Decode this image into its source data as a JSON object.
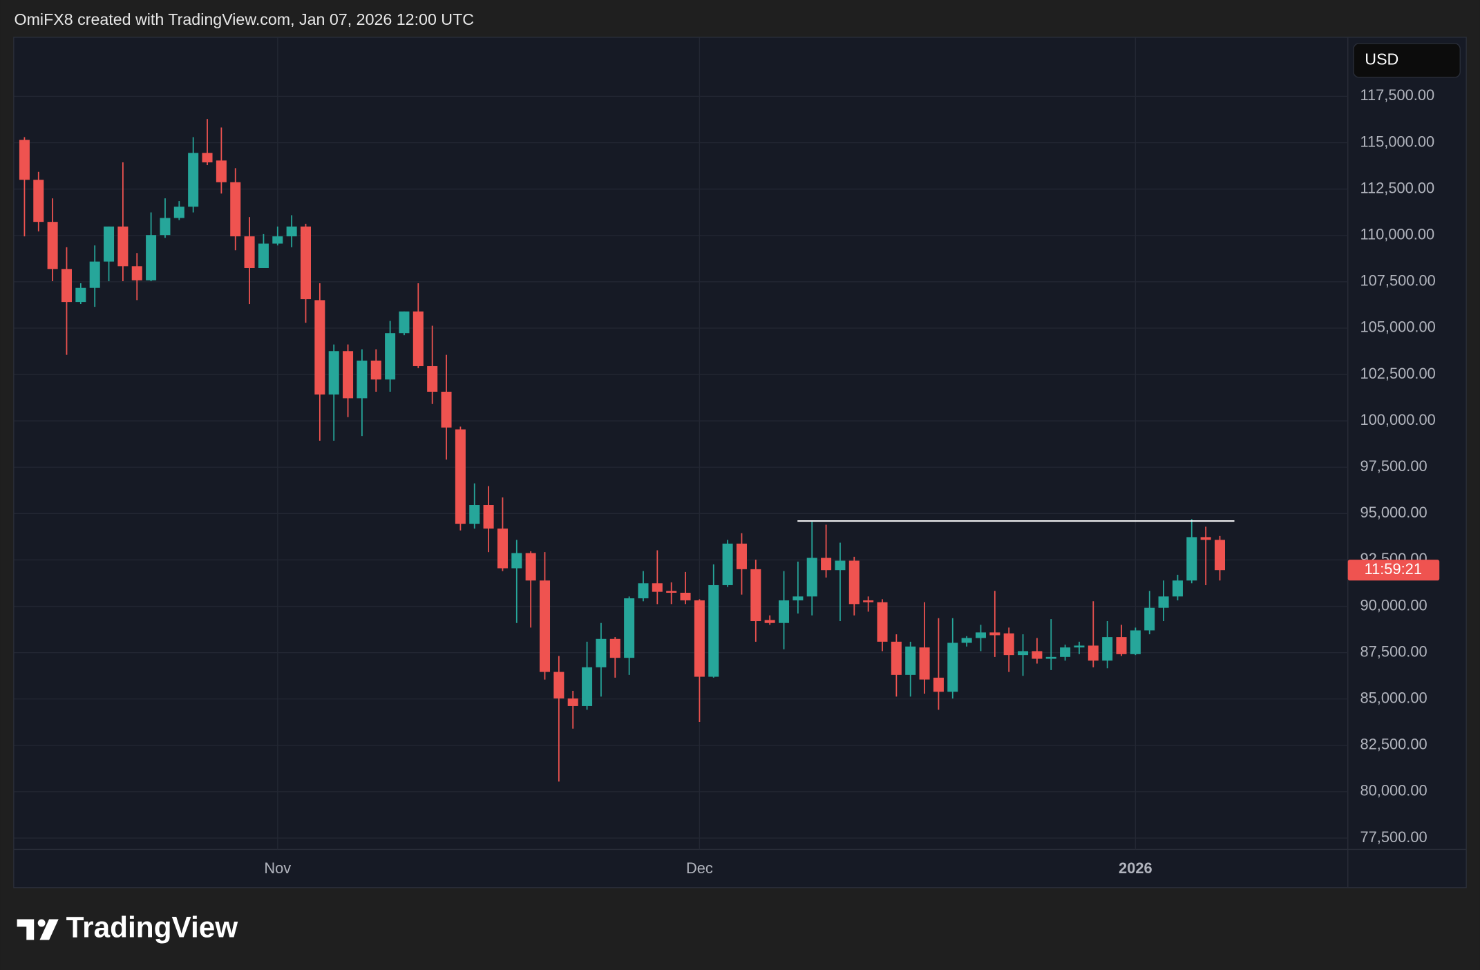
{
  "header": "OmiFX8 created with TradingView.com, Jan 07, 2026 12:00 UTC",
  "currency": "USD",
  "brand": "TradingView",
  "chart_data": {
    "type": "candlestick",
    "categories": [
      null,
      null,
      null,
      null,
      null,
      null,
      null,
      null,
      null,
      null,
      null,
      null,
      null,
      null,
      null,
      null,
      null,
      null,
      "Nov",
      null,
      null,
      null,
      null,
      null,
      null,
      null,
      null,
      null,
      null,
      null,
      null,
      null,
      null,
      null,
      null,
      null,
      null,
      null,
      null,
      null,
      null,
      null,
      null,
      null,
      null,
      null,
      null,
      null,
      "Dec",
      null,
      null,
      null,
      null,
      null,
      null,
      null,
      null,
      null,
      null,
      null,
      null,
      null,
      null,
      null,
      null,
      null,
      null,
      null,
      null,
      null,
      null,
      null,
      null,
      null,
      null,
      null,
      null,
      null,
      null,
      "2026",
      null,
      null,
      null,
      null,
      null,
      null
    ],
    "bold_categories": [
      "2026"
    ],
    "open": [
      115150,
      113000,
      110730,
      108190,
      106410,
      107170,
      108590,
      110480,
      108340,
      107580,
      110020,
      110940,
      111550,
      114450,
      114040,
      112870,
      109950,
      108240,
      109560,
      109950,
      110480,
      106510,
      101420,
      103760,
      101220,
      103250,
      102230,
      104730,
      105900,
      102950,
      101570,
      99540,
      94450,
      95460,
      94190,
      92050,
      92870,
      91390,
      86460,
      85030,
      84620,
      86710,
      88240,
      87220,
      90430,
      91240,
      90830,
      90730,
      90320,
      86200,
      91140,
      93380,
      92000,
      89260,
      89100,
      90320,
      90530,
      92610,
      91950,
      92460,
      90320,
      90220,
      88090,
      86300,
      87780,
      86150,
      85390,
      88030,
      88290,
      88590,
      88540,
      87370,
      87580,
      87170,
      87270,
      87780,
      87880,
      87070,
      88340,
      87420,
      88700,
      89920,
      90530,
      91390,
      93730,
      93580
    ],
    "high": [
      115300,
      113430,
      112000,
      109360,
      107420,
      109460,
      110480,
      113940,
      109050,
      111240,
      112000,
      111850,
      115300,
      116280,
      115820,
      113630,
      110990,
      110070,
      110480,
      111090,
      110630,
      107420,
      104120,
      104120,
      103860,
      103860,
      105390,
      105900,
      107420,
      105130,
      103560,
      99690,
      96630,
      96480,
      95870,
      93580,
      92970,
      92920,
      87320,
      85440,
      88090,
      89100,
      88340,
      90530,
      91900,
      93020,
      91290,
      91850,
      90380,
      92260,
      93580,
      93940,
      92510,
      89510,
      91900,
      92410,
      94550,
      94400,
      93430,
      92670,
      90530,
      90380,
      88490,
      88090,
      90220,
      89360,
      89360,
      88390,
      89000,
      90830,
      88850,
      88490,
      88290,
      89310,
      87930,
      88090,
      90270,
      89200,
      89000,
      88850,
      90830,
      91390,
      91700,
      94700,
      94290,
      93790
    ],
    "low": [
      109950,
      110220,
      107530,
      103560,
      106300,
      106150,
      107530,
      107530,
      106510,
      107530,
      109870,
      110830,
      111240,
      113790,
      112260,
      109200,
      106300,
      108240,
      109460,
      109360,
      105290,
      98930,
      98930,
      100200,
      99180,
      101570,
      101570,
      104620,
      102840,
      100910,
      97910,
      94090,
      94190,
      92920,
      91900,
      89100,
      88850,
      86050,
      80550,
      83400,
      84420,
      85130,
      86150,
      86300,
      90270,
      90120,
      90120,
      90120,
      83760,
      86150,
      91040,
      90630,
      88090,
      89000,
      87680,
      89610,
      89510,
      91550,
      89200,
      89510,
      89710,
      87580,
      85130,
      85130,
      85290,
      84420,
      85030,
      87830,
      87580,
      87270,
      86460,
      86250,
      86910,
      86560,
      87070,
      87420,
      86710,
      86660,
      87320,
      87370,
      88490,
      89200,
      90320,
      91240,
      91140,
      91390
    ],
    "close": [
      113000,
      110730,
      108190,
      106410,
      107170,
      108590,
      110480,
      108340,
      107580,
      110020,
      110940,
      111550,
      114450,
      113940,
      112870,
      109950,
      108240,
      109560,
      109950,
      110480,
      106560,
      101420,
      103760,
      101220,
      103250,
      102230,
      104730,
      105900,
      102950,
      101570,
      99640,
      94450,
      95460,
      94190,
      92050,
      92870,
      91390,
      86460,
      85030,
      84620,
      86710,
      88240,
      87220,
      90430,
      91240,
      90780,
      90730,
      90320,
      86200,
      91140,
      93380,
      92000,
      89200,
      89100,
      90320,
      90530,
      92610,
      91950,
      92460,
      90120,
      90220,
      88090,
      86300,
      87830,
      86050,
      85390,
      88030,
      88290,
      88590,
      88440,
      87370,
      87580,
      87170,
      87270,
      87780,
      87880,
      87070,
      88340,
      87420,
      88700,
      89920,
      90530,
      91390,
      93730,
      93580,
      91950
    ],
    "up_color": "#26a69a",
    "down_color": "#ef5350",
    "hline": 94600,
    "countdown": "11:59:21",
    "ylim": [
      76890,
      120660
    ],
    "yticks": [
      {
        "value": 77500,
        "label": "77,500.00"
      },
      {
        "value": 80000,
        "label": "80,000.00"
      },
      {
        "value": 82500,
        "label": "82,500.00"
      },
      {
        "value": 85000,
        "label": "85,000.00"
      },
      {
        "value": 87500,
        "label": "87,500.00"
      },
      {
        "value": 90000,
        "label": "90,000.00"
      },
      {
        "value": 92500,
        "label": "92,500.00"
      },
      {
        "value": 95000,
        "label": "95,000.00"
      },
      {
        "value": 97500,
        "label": "97,500.00"
      },
      {
        "value": 100000,
        "label": "100,000.00"
      },
      {
        "value": 102500,
        "label": "102,500.00"
      },
      {
        "value": 105000,
        "label": "105,000.00"
      },
      {
        "value": 107500,
        "label": "107,500.00"
      },
      {
        "value": 110000,
        "label": "110,000.00"
      },
      {
        "value": 112500,
        "label": "112,500.00"
      },
      {
        "value": 115000,
        "label": "115,000.00"
      },
      {
        "value": 117500,
        "label": "117,500.00"
      }
    ],
    "grid": true
  }
}
